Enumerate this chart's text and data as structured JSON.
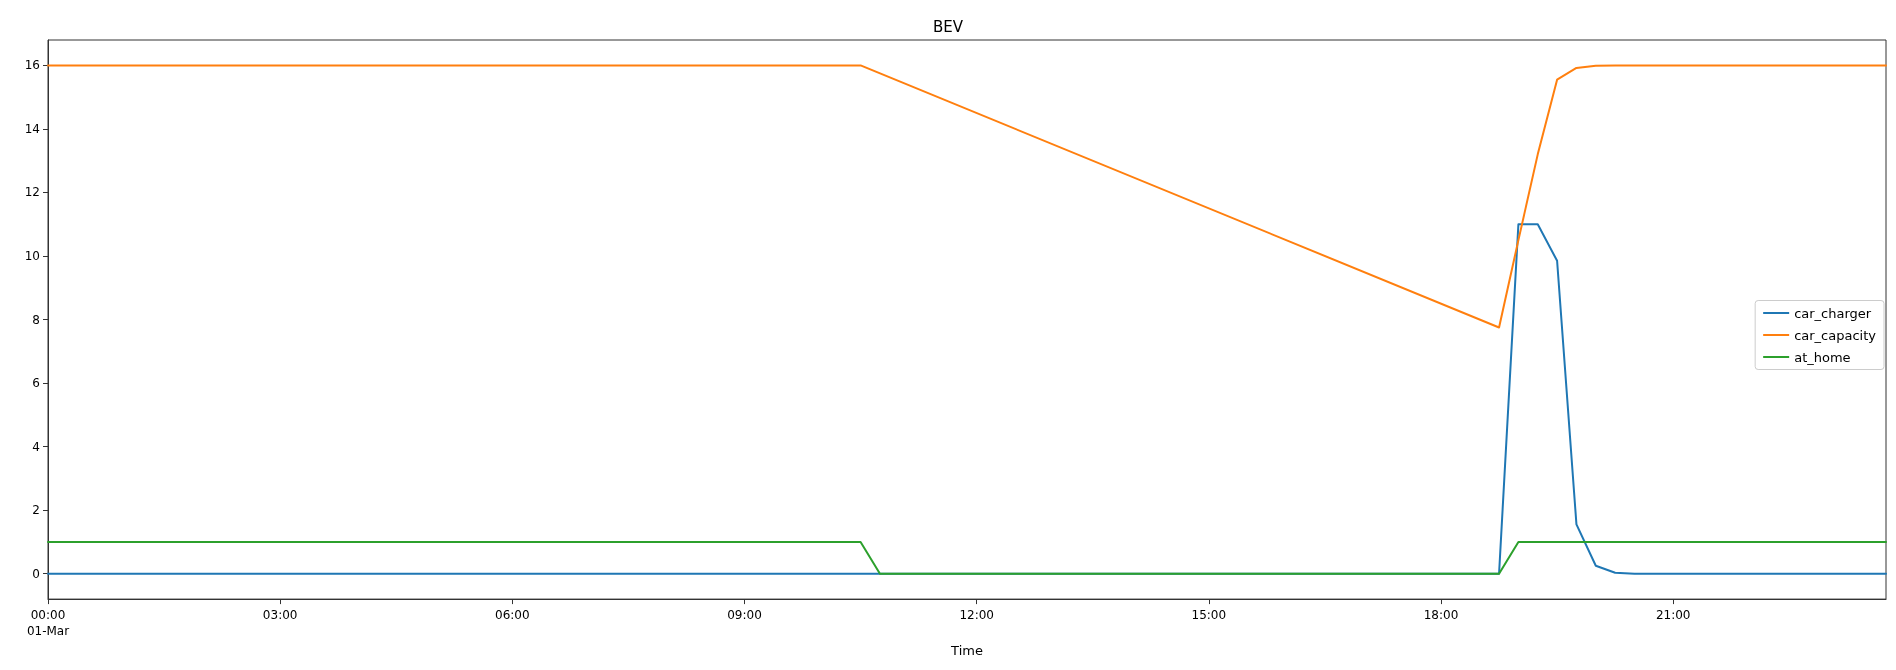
{
  "chart_data": {
    "type": "line",
    "title": "BEV",
    "xlabel": "Time",
    "xlim": [
      0,
      23.75
    ],
    "xticks": [
      {
        "value": 0,
        "label": "00:00\n01-Mar"
      },
      {
        "value": 3,
        "label": "03:00"
      },
      {
        "value": 6,
        "label": "06:00"
      },
      {
        "value": 9,
        "label": "09:00"
      },
      {
        "value": 12,
        "label": "12:00"
      },
      {
        "value": 15,
        "label": "15:00"
      },
      {
        "value": 18,
        "label": "18:00"
      },
      {
        "value": 21,
        "label": "21:00"
      }
    ],
    "ylim": [
      -0.8,
      16.8
    ],
    "yticks": [
      0,
      2,
      4,
      6,
      8,
      10,
      12,
      14,
      16
    ],
    "grid": false,
    "legend": "right",
    "marker": "none",
    "line_style": "solid",
    "series": [
      {
        "name": "car_charger",
        "color": "#1f77b4",
        "x": [
          0,
          18.75,
          19.0,
          19.25,
          19.5,
          19.75,
          20.0,
          20.25,
          20.5,
          23.75
        ],
        "values": [
          0,
          0,
          11,
          11,
          9.85,
          1.55,
          0.25,
          0.03,
          0,
          0
        ]
      },
      {
        "name": "car_capacity",
        "color": "#ff7f0e",
        "x": [
          0,
          10.5,
          18.75,
          19.0,
          19.25,
          19.5,
          19.75,
          20.0,
          20.25,
          23.75
        ],
        "values": [
          16,
          16,
          7.75,
          10.5,
          13.2,
          15.55,
          15.92,
          15.99,
          16,
          16
        ]
      },
      {
        "name": "at_home",
        "color": "#2ca02c",
        "x": [
          0,
          10.5,
          10.75,
          18.75,
          19.0,
          23.75
        ],
        "values": [
          1,
          1,
          0,
          0,
          1,
          1
        ]
      }
    ]
  }
}
